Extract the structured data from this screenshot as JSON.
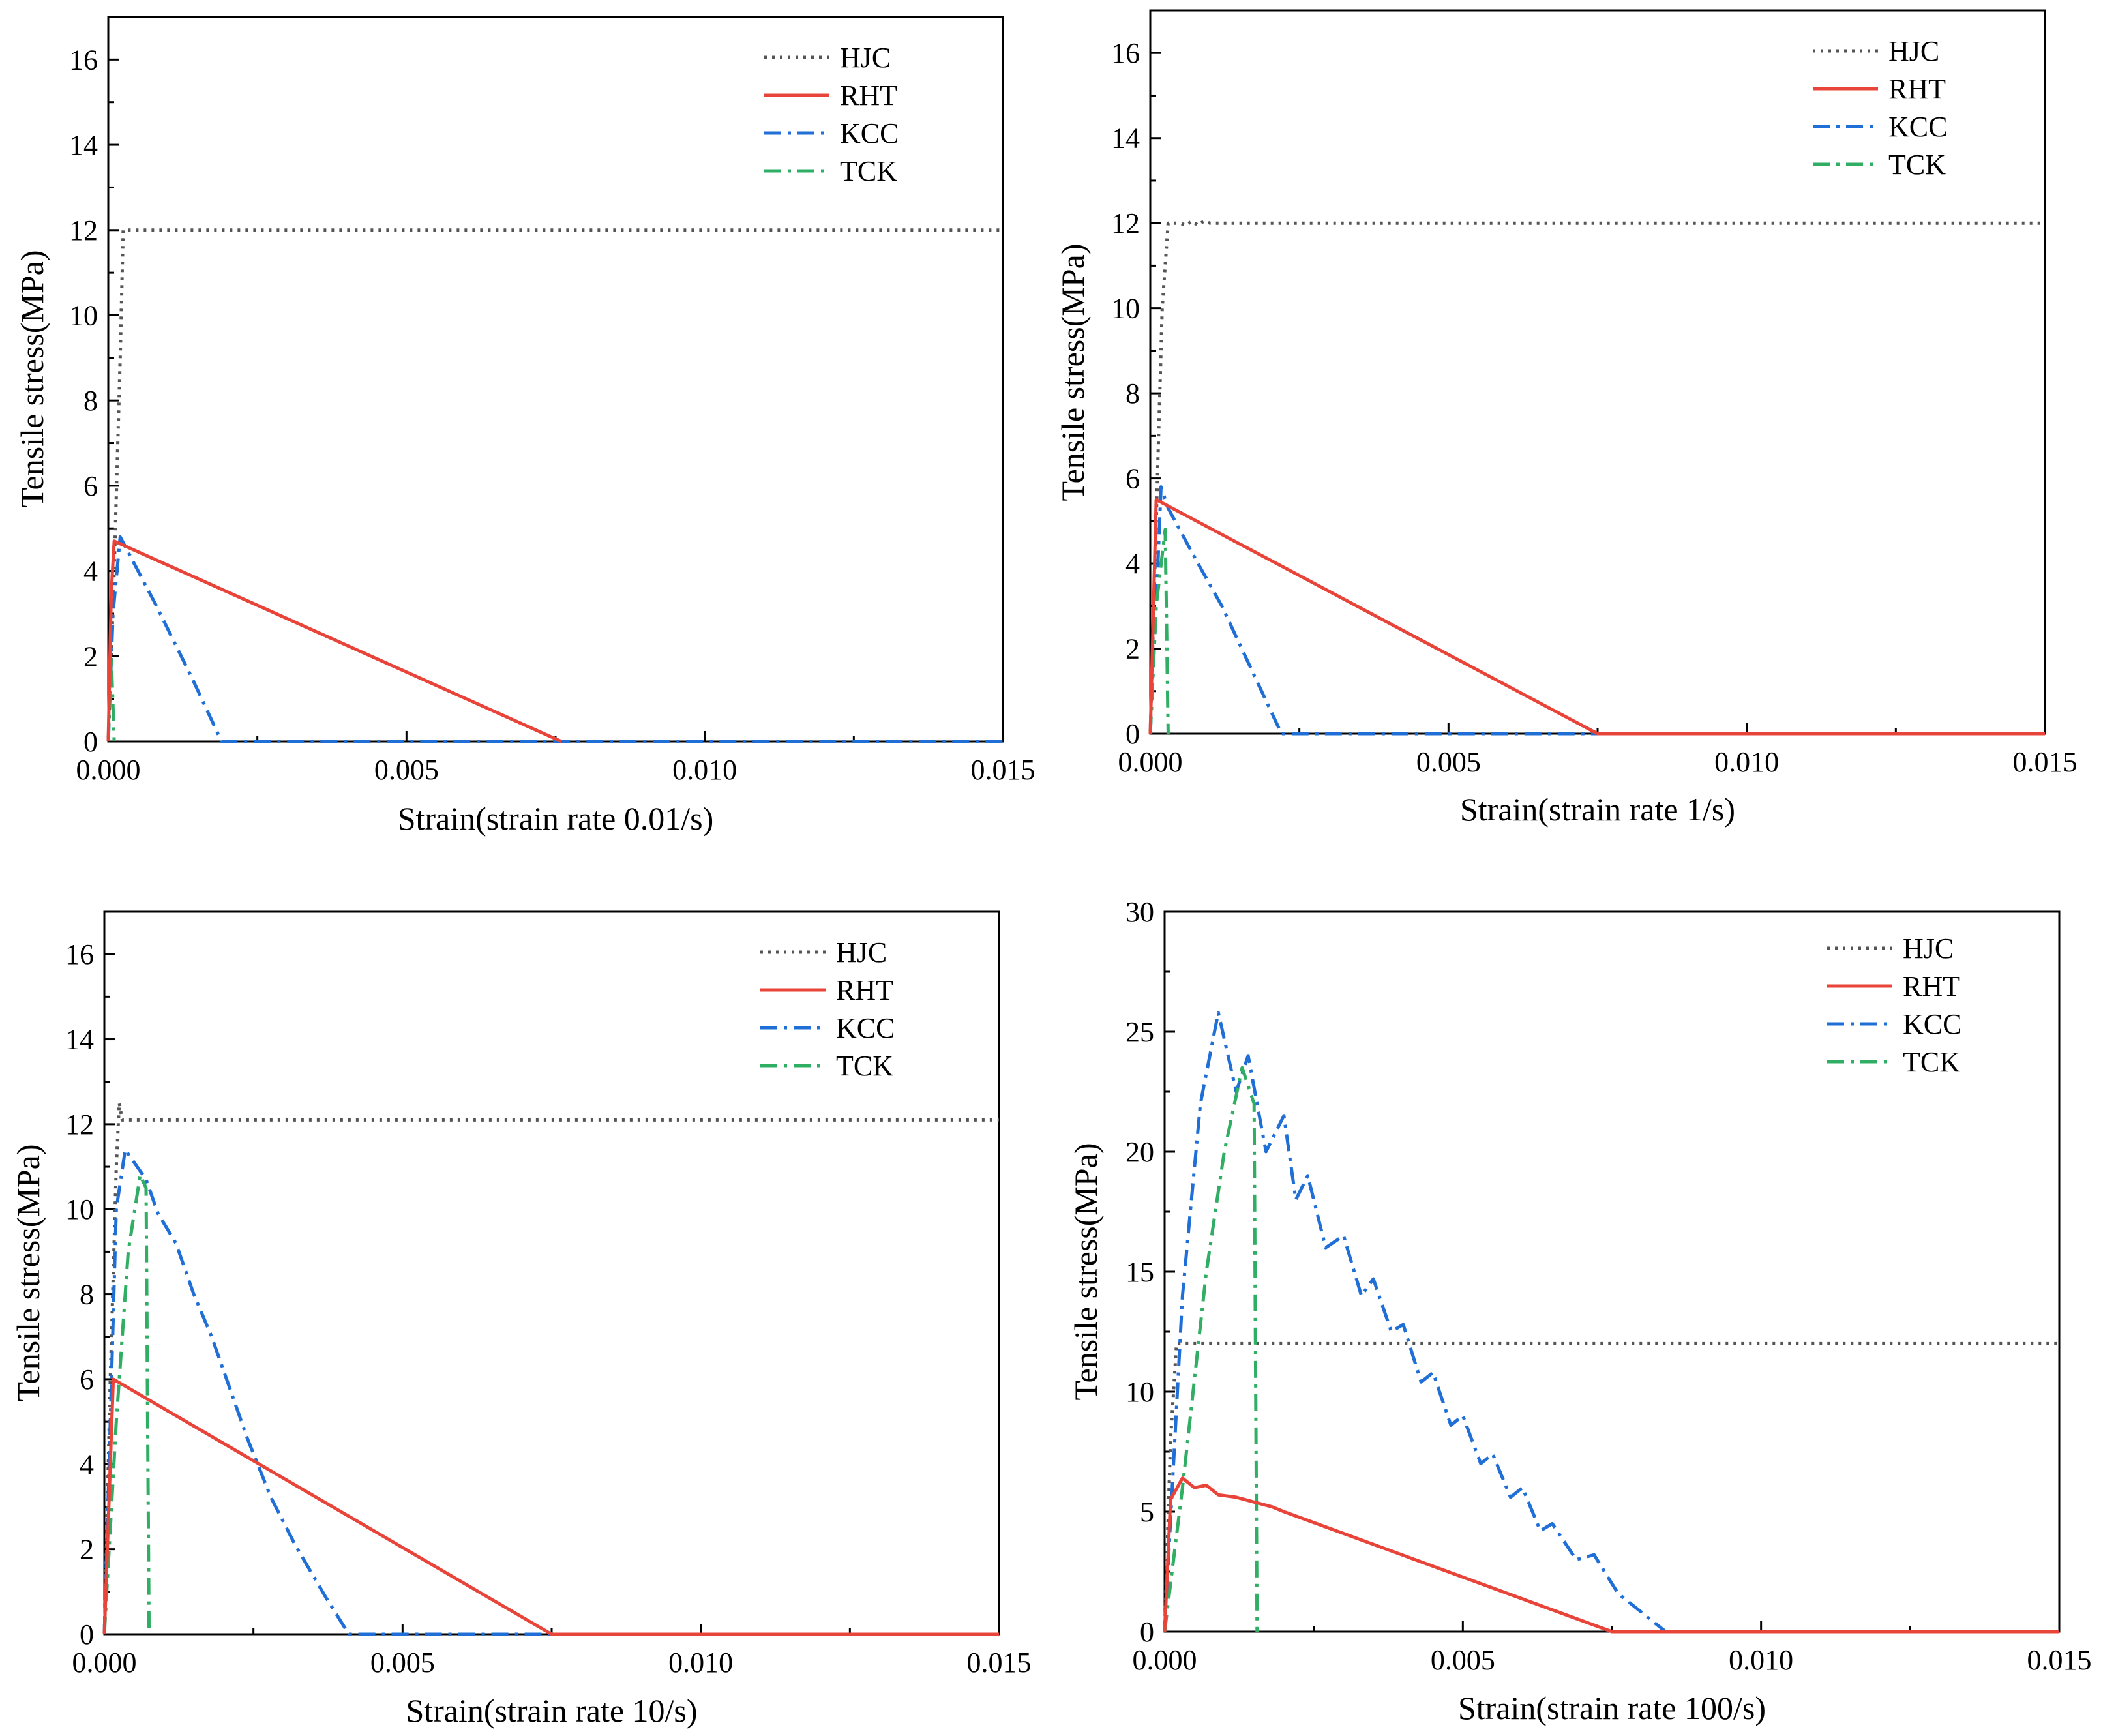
{
  "colors": {
    "HJC": "#555555",
    "RHT": "#e8443a",
    "KCC": "#1f6fd6",
    "TCK": "#2fae64"
  },
  "dash_styles": {
    "HJC": "dotted",
    "RHT": "solid",
    "KCC": "dash-dot",
    "TCK": "dash-dot"
  },
  "chart_data": [
    {
      "type": "line",
      "id": "panel-a",
      "xlabel": "Strain(strain rate 0.01/s)",
      "ylabel": "Tensile stress(MPa)",
      "xlim": [
        0,
        0.015
      ],
      "ylim": [
        0,
        17
      ],
      "xticks": [
        0,
        0.005,
        0.01,
        0.015
      ],
      "xtick_labels": [
        "0.000",
        "0.005",
        "0.010",
        "0.015"
      ],
      "yticks": [
        0,
        2,
        4,
        6,
        8,
        10,
        12,
        14,
        16
      ],
      "ytick_labels": [
        "0",
        "2",
        "4",
        "6",
        "8",
        "10",
        "12",
        "14",
        "16"
      ],
      "legend_position": "top-right",
      "series": [
        {
          "name": "HJC",
          "points": [
            [
              0,
              0
            ],
            [
              0.0001,
              4
            ],
            [
              0.0002,
              9
            ],
            [
              0.00025,
              12
            ],
            [
              0.015,
              12
            ]
          ]
        },
        {
          "name": "RHT",
          "points": [
            [
              0,
              0
            ],
            [
              5e-05,
              3.5
            ],
            [
              0.0001,
              4.7
            ],
            [
              0.0076,
              0
            ]
          ]
        },
        {
          "name": "KCC",
          "points": [
            [
              0,
              0
            ],
            [
              8e-05,
              3
            ],
            [
              0.0002,
              4.8
            ],
            [
              0.0008,
              3.2
            ],
            [
              0.0014,
              1.5
            ],
            [
              0.0019,
              0
            ],
            [
              0.015,
              0
            ]
          ]
        },
        {
          "name": "TCK",
          "points": [
            [
              0,
              0
            ],
            [
              5e-05,
              2
            ],
            [
              0.0001,
              0
            ]
          ]
        }
      ]
    },
    {
      "type": "line",
      "id": "panel-b",
      "xlabel": "Strain(strain rate 1/s)",
      "ylabel": "Tensile stress(MPa)",
      "xlim": [
        0,
        0.015
      ],
      "ylim": [
        0,
        17
      ],
      "xticks": [
        0,
        0.005,
        0.01,
        0.015
      ],
      "xtick_labels": [
        "0.000",
        "0.005",
        "0.010",
        "0.015"
      ],
      "yticks": [
        0,
        2,
        4,
        6,
        8,
        10,
        12,
        14,
        16
      ],
      "ytick_labels": [
        "0",
        "2",
        "4",
        "6",
        "8",
        "10",
        "12",
        "14",
        "16"
      ],
      "legend_position": "top-right",
      "series": [
        {
          "name": "HJC",
          "points": [
            [
              0,
              0
            ],
            [
              0.0001,
              5
            ],
            [
              0.0002,
              10
            ],
            [
              0.0003,
              12
            ],
            [
              0.0005,
              12
            ],
            [
              0.0006,
              11.95
            ],
            [
              0.0007,
              12.05
            ],
            [
              0.0008,
              11.95
            ],
            [
              0.0009,
              12.05
            ],
            [
              0.001,
              12
            ],
            [
              0.015,
              12
            ]
          ]
        },
        {
          "name": "RHT",
          "points": [
            [
              0,
              0
            ],
            [
              0.0001,
              5.5
            ],
            [
              0.0075,
              0
            ],
            [
              0.015,
              0
            ]
          ]
        },
        {
          "name": "KCC",
          "points": [
            [
              0,
              0
            ],
            [
              0.0001,
              3
            ],
            [
              0.00018,
              5.8
            ],
            [
              0.0003,
              5.3
            ],
            [
              0.0008,
              4
            ],
            [
              0.0012,
              3
            ],
            [
              0.0016,
              1.8
            ],
            [
              0.0022,
              0
            ],
            [
              0.015,
              0
            ]
          ]
        },
        {
          "name": "TCK",
          "points": [
            [
              0,
              0
            ],
            [
              0.0001,
              3
            ],
            [
              0.00025,
              4.8
            ],
            [
              0.0003,
              0
            ]
          ]
        }
      ]
    },
    {
      "type": "line",
      "id": "panel-c",
      "xlabel": "Strain(strain rate 10/s)",
      "ylabel": "Tensile stress(MPa)",
      "xlim": [
        0,
        0.015
      ],
      "ylim": [
        0,
        17
      ],
      "xticks": [
        0,
        0.005,
        0.01,
        0.015
      ],
      "xtick_labels": [
        "0.000",
        "0.005",
        "0.010",
        "0.015"
      ],
      "yticks": [
        0,
        2,
        4,
        6,
        8,
        10,
        12,
        14,
        16
      ],
      "ytick_labels": [
        "0",
        "2",
        "4",
        "6",
        "8",
        "10",
        "12",
        "14",
        "16"
      ],
      "legend_position": "top-right",
      "series": [
        {
          "name": "HJC",
          "points": [
            [
              0,
              0
            ],
            [
              0.0001,
              6
            ],
            [
              0.0002,
              11
            ],
            [
              0.00025,
              12.5
            ],
            [
              0.0003,
              12.1
            ],
            [
              0.015,
              12.1
            ]
          ]
        },
        {
          "name": "RHT",
          "points": [
            [
              0,
              0
            ],
            [
              0.00015,
              6
            ],
            [
              0.0075,
              0
            ],
            [
              0.015,
              0
            ]
          ]
        },
        {
          "name": "KCC",
          "points": [
            [
              0,
              0
            ],
            [
              0.0001,
              5
            ],
            [
              0.0002,
              10
            ],
            [
              0.00035,
              11.4
            ],
            [
              0.0005,
              11.1
            ],
            [
              0.0007,
              10.7
            ],
            [
              0.0009,
              9.9
            ],
            [
              0.0012,
              9.2
            ],
            [
              0.0015,
              8
            ],
            [
              0.0018,
              7
            ],
            [
              0.0021,
              5.8
            ],
            [
              0.0024,
              4.6
            ],
            [
              0.0028,
              3.2
            ],
            [
              0.0032,
              2.1
            ],
            [
              0.0037,
              0.9
            ],
            [
              0.0041,
              0
            ],
            [
              0.015,
              0
            ]
          ]
        },
        {
          "name": "TCK",
          "points": [
            [
              0,
              0
            ],
            [
              0.0002,
              5
            ],
            [
              0.0004,
              9
            ],
            [
              0.0006,
              10.8
            ],
            [
              0.0007,
              10.5
            ],
            [
              0.00075,
              0
            ]
          ]
        }
      ]
    },
    {
      "type": "line",
      "id": "panel-d",
      "xlabel": "Strain(strain rate 100/s)",
      "ylabel": "Tensile stress(MPa)",
      "xlim": [
        0,
        0.015
      ],
      "ylim": [
        0,
        30
      ],
      "xticks": [
        0,
        0.005,
        0.01,
        0.015
      ],
      "xtick_labels": [
        "0.000",
        "0.005",
        "0.010",
        "0.015"
      ],
      "yticks": [
        0,
        5,
        10,
        15,
        20,
        25,
        30
      ],
      "ytick_labels": [
        "0",
        "5",
        "10",
        "15",
        "20",
        "25",
        "30"
      ],
      "legend_position": "top-right",
      "series": [
        {
          "name": "HJC",
          "points": [
            [
              0,
              0
            ],
            [
              0.0001,
              8
            ],
            [
              0.0002,
              12
            ],
            [
              0.015,
              12
            ]
          ]
        },
        {
          "name": "RHT",
          "points": [
            [
              0,
              0
            ],
            [
              0.0001,
              5.5
            ],
            [
              0.0003,
              6.4
            ],
            [
              0.0005,
              6
            ],
            [
              0.0007,
              6.1
            ],
            [
              0.0009,
              5.7
            ],
            [
              0.0012,
              5.6
            ],
            [
              0.0015,
              5.4
            ],
            [
              0.0018,
              5.2
            ],
            [
              0.002,
              5
            ],
            [
              0.0075,
              0
            ],
            [
              0.015,
              0
            ]
          ]
        },
        {
          "name": "KCC",
          "points": [
            [
              0,
              0
            ],
            [
              0.0003,
              14
            ],
            [
              0.0006,
              22
            ],
            [
              0.0009,
              25.8
            ],
            [
              0.0012,
              22.5
            ],
            [
              0.0014,
              24
            ],
            [
              0.0017,
              20
            ],
            [
              0.002,
              21.5
            ],
            [
              0.0022,
              18
            ],
            [
              0.0024,
              19
            ],
            [
              0.0027,
              16
            ],
            [
              0.003,
              16.5
            ],
            [
              0.0033,
              14
            ],
            [
              0.0035,
              14.7
            ],
            [
              0.0038,
              12.5
            ],
            [
              0.004,
              12.8
            ],
            [
              0.0043,
              10.4
            ],
            [
              0.0045,
              10.8
            ],
            [
              0.0048,
              8.6
            ],
            [
              0.005,
              9
            ],
            [
              0.0053,
              7
            ],
            [
              0.0055,
              7.4
            ],
            [
              0.0058,
              5.6
            ],
            [
              0.006,
              6
            ],
            [
              0.0063,
              4.2
            ],
            [
              0.0065,
              4.5
            ],
            [
              0.0069,
              3
            ],
            [
              0.0072,
              3.2
            ],
            [
              0.0076,
              1.6
            ],
            [
              0.008,
              0.8
            ],
            [
              0.0084,
              0
            ],
            [
              0.015,
              0
            ]
          ]
        },
        {
          "name": "TCK",
          "points": [
            [
              0,
              0
            ],
            [
              0.0003,
              6
            ],
            [
              0.0007,
              15
            ],
            [
              0.001,
              20
            ],
            [
              0.0013,
              23.5
            ],
            [
              0.0015,
              22
            ],
            [
              0.00155,
              0
            ]
          ]
        }
      ]
    }
  ]
}
